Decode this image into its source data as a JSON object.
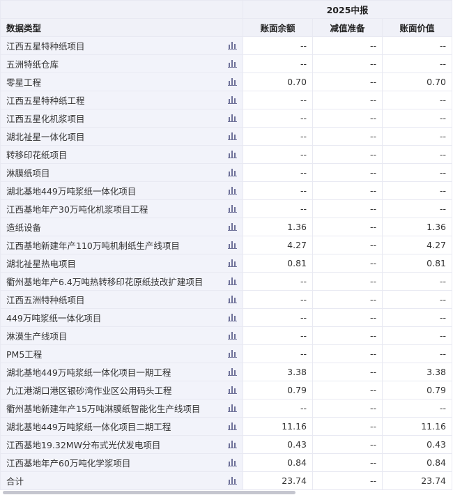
{
  "header": {
    "period": "2025中报",
    "type_label": "数据类型",
    "columns": [
      "账面余额",
      "减值准备",
      "账面价值"
    ]
  },
  "rows": [
    {
      "name": "江西五星特种纸项目",
      "v": [
        "--",
        "--",
        "--"
      ]
    },
    {
      "name": "五洲特纸仓库",
      "v": [
        "--",
        "--",
        "--"
      ]
    },
    {
      "name": "零星工程",
      "v": [
        "0.70",
        "--",
        "0.70"
      ]
    },
    {
      "name": "江西五星特种纸工程",
      "v": [
        "--",
        "--",
        "--"
      ]
    },
    {
      "name": "江西五星化机浆项目",
      "v": [
        "--",
        "--",
        "--"
      ]
    },
    {
      "name": "湖北祉星一体化项目",
      "v": [
        "--",
        "--",
        "--"
      ]
    },
    {
      "name": "转移印花纸项目",
      "v": [
        "--",
        "--",
        "--"
      ]
    },
    {
      "name": "淋膜纸项目",
      "v": [
        "--",
        "--",
        "--"
      ]
    },
    {
      "name": "湖北基地449万吨浆纸一体化项目",
      "v": [
        "--",
        "--",
        "--"
      ]
    },
    {
      "name": "江西基地年产30万吨化机浆项目工程",
      "v": [
        "--",
        "--",
        "--"
      ]
    },
    {
      "name": "造纸设备",
      "v": [
        "1.36",
        "--",
        "1.36"
      ]
    },
    {
      "name": "江西基地新建年产110万吨机制纸生产线项目",
      "v": [
        "4.27",
        "--",
        "4.27"
      ]
    },
    {
      "name": "湖北祉星热电项目",
      "v": [
        "0.81",
        "--",
        "0.81"
      ]
    },
    {
      "name": "衢州基地年产6.4万吨热转移印花原纸技改扩建项目",
      "v": [
        "--",
        "--",
        "--"
      ]
    },
    {
      "name": "江西五洲特种纸项目",
      "v": [
        "--",
        "--",
        "--"
      ]
    },
    {
      "name": "449万吨浆纸一体化项目",
      "v": [
        "--",
        "--",
        "--"
      ]
    },
    {
      "name": "淋漠生产线项目",
      "v": [
        "--",
        "--",
        "--"
      ]
    },
    {
      "name": "PM5工程",
      "v": [
        "--",
        "--",
        "--"
      ]
    },
    {
      "name": "湖北基地449万吨浆纸一体化项目一期工程",
      "v": [
        "3.38",
        "--",
        "3.38"
      ]
    },
    {
      "name": "九江港湖口港区银砂湾作业区公用码头工程",
      "v": [
        "0.79",
        "--",
        "0.79"
      ]
    },
    {
      "name": "衢州基地新建年产15万吨淋膜纸智能化生产线项目",
      "v": [
        "--",
        "--",
        "--"
      ]
    },
    {
      "name": "湖北基地449万吨浆纸一体化项目二期工程",
      "v": [
        "11.16",
        "--",
        "11.16"
      ]
    },
    {
      "name": "江西基地19.32MW分布式光伏发电项目",
      "v": [
        "0.43",
        "--",
        "0.43"
      ]
    },
    {
      "name": "江西基地年产60万吨化学浆项目",
      "v": [
        "0.84",
        "--",
        "0.84"
      ]
    },
    {
      "name": "合计",
      "v": [
        "23.74",
        "--",
        "23.74"
      ]
    }
  ],
  "icon": "bar-chart-icon"
}
